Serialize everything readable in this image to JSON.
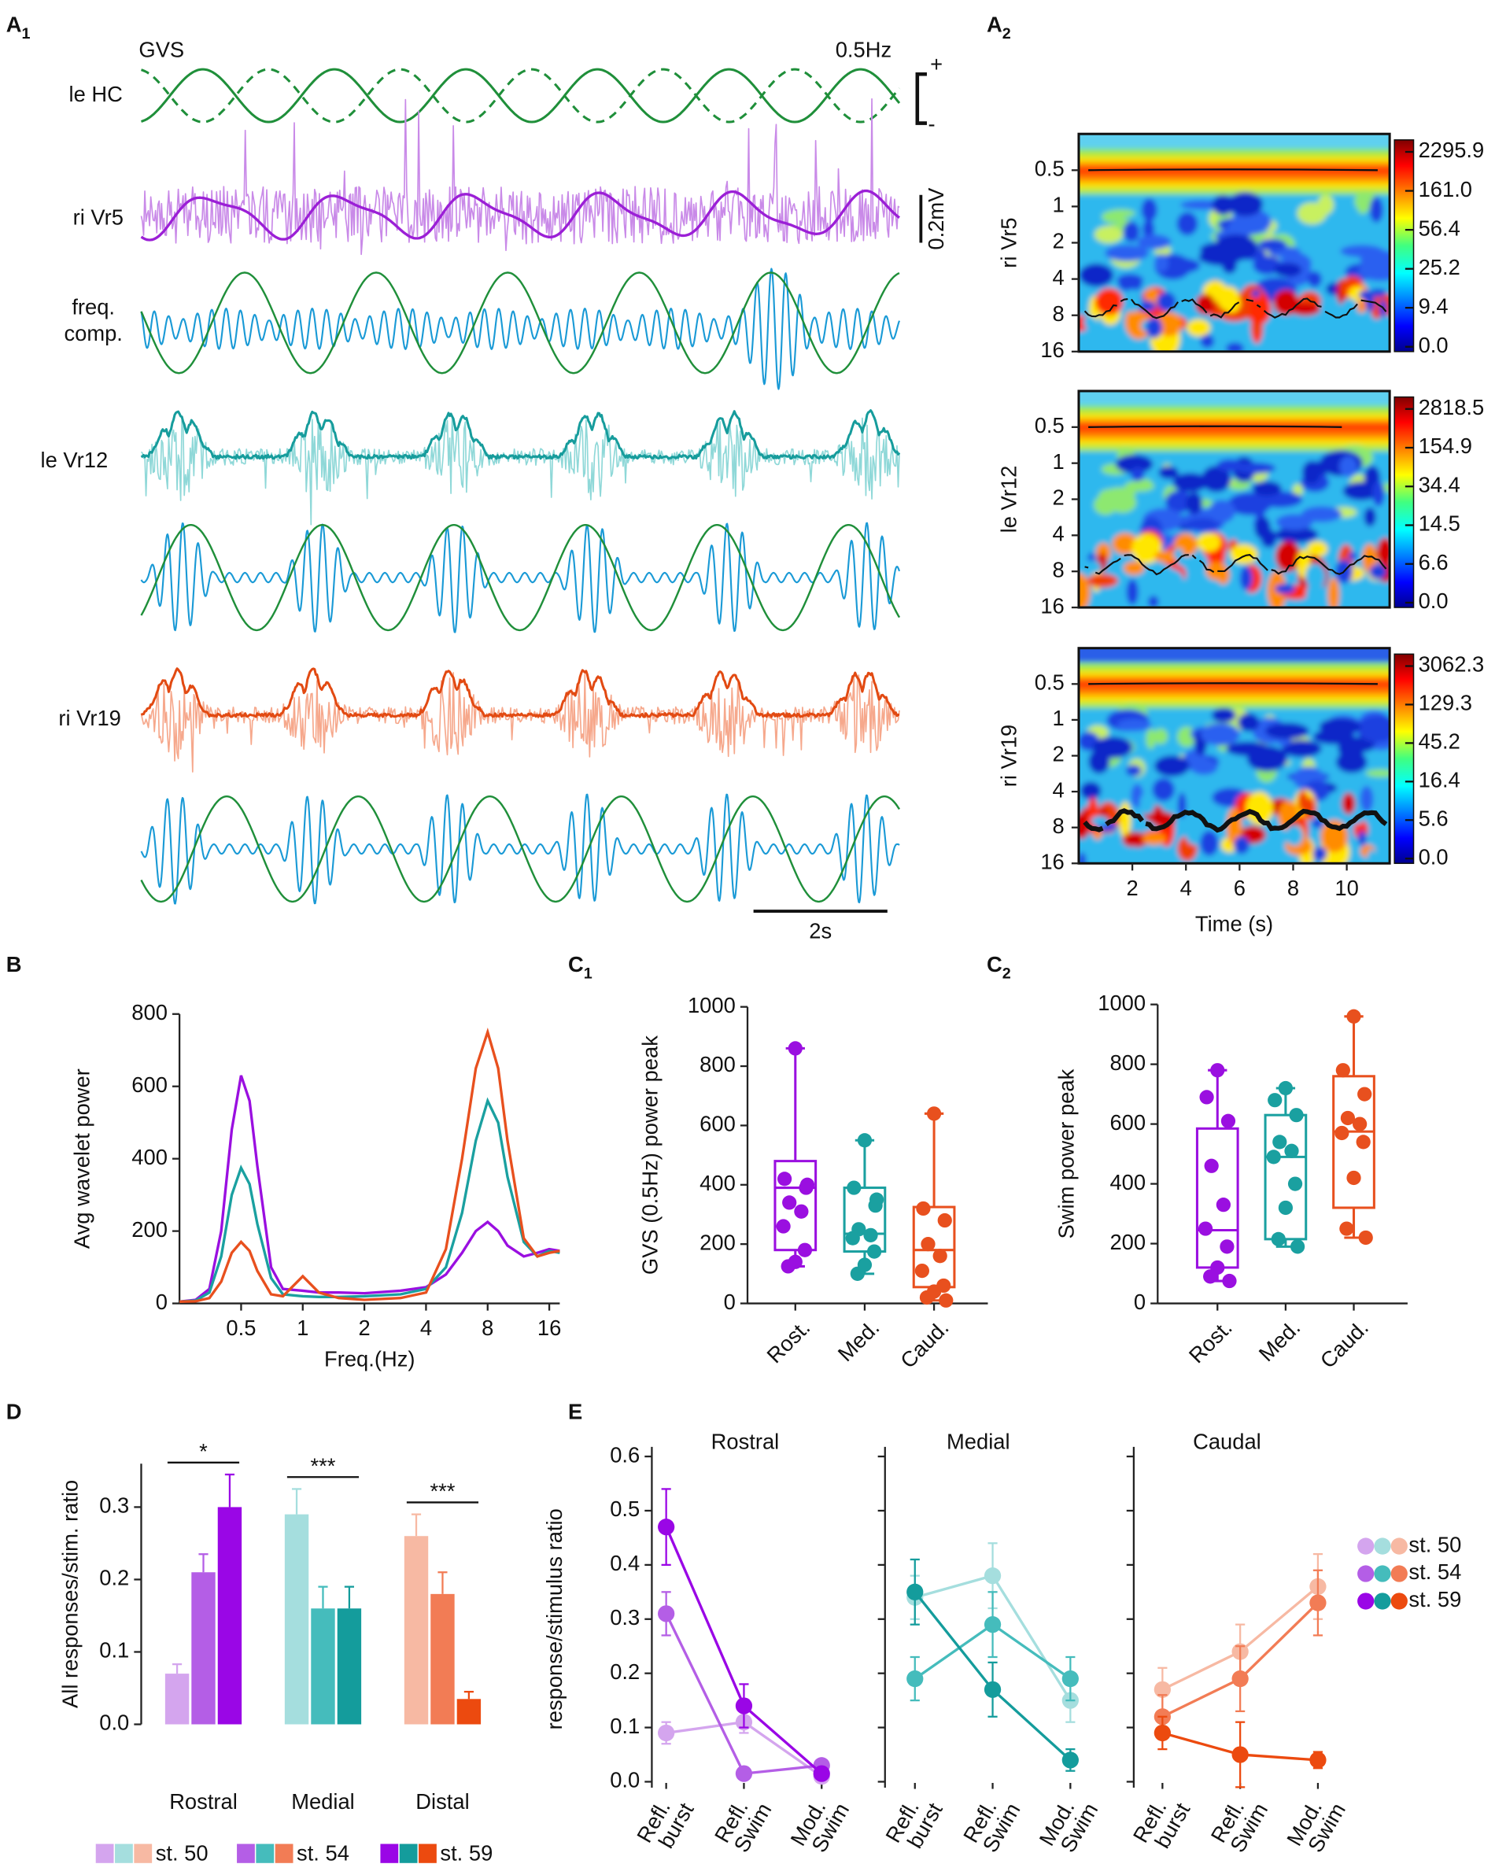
{
  "panel_labels": [
    {
      "letter": "A",
      "sub": "1"
    },
    {
      "letter": "A",
      "sub": "2"
    },
    {
      "letter": "B"
    },
    {
      "letter": "C",
      "sub": "1"
    },
    {
      "letter": "C",
      "sub": "2"
    },
    {
      "letter": "D"
    },
    {
      "letter": "E"
    }
  ],
  "traces": {
    "stimulus": "GVS",
    "frequency": "0.5Hz",
    "hc": "le HC",
    "polarity_plus": "+",
    "polarity_minus": "-",
    "vr5": "ri Vr5",
    "amplitude_scale": "0.2mV",
    "freq_comp": [
      "freq.",
      "comp."
    ],
    "vr12": "le Vr12",
    "vr19": "ri Vr19",
    "time_scale": "2s"
  },
  "chart_data": [
    {
      "type": "scalogram",
      "ylabel": "ri Vr5",
      "color": "#9b1fd6",
      "ylim": [
        0.25,
        16
      ],
      "log_y": true,
      "y_reversed": true,
      "yticks": [
        0.5,
        1,
        2,
        4,
        8,
        16
      ],
      "colorbar_ticks": [
        2295.9,
        {
          "value": 161,
          "label": "161.0"
        },
        56.4,
        25.2,
        9.4,
        {
          "value": 0,
          "label": "0.0"
        }
      ]
    },
    {
      "type": "scalogram",
      "ylabel": "le Vr12",
      "color": "#1aa5a5",
      "ylim": [
        0.25,
        16
      ],
      "log_y": true,
      "y_reversed": true,
      "yticks": [
        0.5,
        1,
        2,
        4,
        8,
        16
      ],
      "colorbar_ticks": [
        2818.5,
        154.9,
        34.4,
        14.5,
        6.6,
        {
          "value": 0,
          "label": "0.0"
        }
      ]
    },
    {
      "type": "scalogram",
      "ylabel": "ri Vr19",
      "color": "#e8501e",
      "ylim": [
        0.25,
        16
      ],
      "log_y": true,
      "y_reversed": true,
      "yticks": [
        0.5,
        1,
        2,
        4,
        8,
        16
      ],
      "colorbar_ticks": [
        3062.3,
        129.3,
        45.2,
        16.4,
        5.6,
        {
          "value": 0,
          "label": "0.0"
        }
      ],
      "xlim": [
        0,
        11.6
      ],
      "xticks": [
        2,
        4,
        6,
        8,
        10
      ],
      "xlabel": "Time (s)"
    },
    {
      "type": "line",
      "xlabel": "Freq.(Hz)",
      "ylabel": "Avg wavelet power",
      "log_x": true,
      "xlim": [
        0.25,
        18
      ],
      "xticks": [
        0.5,
        1,
        2,
        4,
        8,
        16
      ],
      "ylim": [
        0,
        800
      ],
      "yticks": [
        0,
        200,
        400,
        600,
        800
      ],
      "x": [
        0.25,
        0.3,
        0.35,
        0.4,
        0.45,
        0.5,
        0.55,
        0.6,
        0.7,
        0.8,
        1,
        1.2,
        1.5,
        2,
        3,
        4,
        5,
        6,
        7,
        8,
        9,
        10,
        12,
        14,
        16,
        18
      ],
      "series": [
        {
          "color": "#9a0fe0",
          "values": [
            5,
            10,
            40,
            200,
            480,
            630,
            560,
            380,
            100,
            40,
            35,
            30,
            30,
            28,
            35,
            45,
            80,
            140,
            200,
            225,
            200,
            160,
            130,
            140,
            150,
            145
          ]
        },
        {
          "color": "#1aa0a0",
          "values": [
            5,
            8,
            30,
            130,
            300,
            375,
            330,
            220,
            70,
            25,
            20,
            18,
            18,
            20,
            25,
            40,
            100,
            250,
            450,
            560,
            500,
            350,
            170,
            130,
            145,
            140
          ]
        },
        {
          "color": "#e8501e",
          "values": [
            5,
            6,
            15,
            60,
            140,
            170,
            145,
            90,
            25,
            20,
            75,
            30,
            15,
            10,
            15,
            30,
            150,
            400,
            650,
            750,
            650,
            450,
            180,
            130,
            140,
            145
          ]
        }
      ]
    },
    {
      "type": "box",
      "ylabel": "GVS (0.5Hz) power peak",
      "ylim": [
        0,
        1000
      ],
      "yticks": [
        0,
        200,
        400,
        600,
        800,
        1000
      ],
      "categories": [
        "Rost.",
        "Med.",
        "Caud."
      ],
      "colors": [
        "#9a0fe0",
        "#1aa0a0",
        "#e8501e"
      ],
      "boxes": [
        {
          "min": 125,
          "q1": 180,
          "median": 390,
          "q3": 480,
          "max": 860,
          "points": [
            860,
            420,
            390,
            340,
            310,
            260,
            180,
            140,
            125,
            400
          ]
        },
        {
          "min": 100,
          "q1": 175,
          "median": 235,
          "q3": 390,
          "max": 550,
          "points": [
            550,
            390,
            330,
            250,
            230,
            220,
            175,
            130,
            100,
            350
          ]
        },
        {
          "min": 10,
          "q1": 55,
          "median": 180,
          "q3": 325,
          "max": 640,
          "points": [
            640,
            320,
            280,
            200,
            160,
            110,
            60,
            40,
            20,
            10
          ]
        }
      ]
    },
    {
      "type": "box",
      "ylabel": "Swim power peak",
      "ylim": [
        0,
        1000
      ],
      "yticks": [
        0,
        200,
        400,
        600,
        800,
        1000
      ],
      "categories": [
        "Rost.",
        "Med.",
        "Caud."
      ],
      "colors": [
        "#9a0fe0",
        "#1aa0a0",
        "#e8501e"
      ],
      "boxes": [
        {
          "min": 75,
          "q1": 120,
          "median": 245,
          "q3": 585,
          "max": 780,
          "points": [
            780,
            690,
            610,
            460,
            330,
            250,
            190,
            120,
            90,
            75
          ]
        },
        {
          "min": 190,
          "q1": 215,
          "median": 490,
          "q3": 630,
          "max": 720,
          "points": [
            720,
            680,
            630,
            540,
            510,
            490,
            400,
            320,
            215,
            190
          ]
        },
        {
          "min": 220,
          "q1": 320,
          "median": 575,
          "q3": 760,
          "max": 960,
          "points": [
            960,
            780,
            700,
            620,
            600,
            570,
            540,
            420,
            250,
            220
          ]
        }
      ]
    },
    {
      "type": "bar",
      "ylabel": "All responses/stim. ratio",
      "ylim": [
        0,
        0.36
      ],
      "yticks": [
        {
          "value": 0,
          "label": "0.0"
        },
        0.1,
        0.2,
        0.3
      ],
      "categories": [
        "Rostral",
        "Medial",
        "Distal"
      ],
      "significance": [
        "*",
        "***",
        "***"
      ],
      "series": [
        {
          "name": "st. 50",
          "colors": [
            "#d4a5ee",
            "#a5dede",
            "#f7b9a3"
          ],
          "values": [
            0.07,
            0.29,
            0.26
          ],
          "errors": [
            0.013,
            0.035,
            0.03
          ]
        },
        {
          "name": "st. 54",
          "colors": [
            "#b45ee6",
            "#45bcbc",
            "#f27c55"
          ],
          "values": [
            0.21,
            0.16,
            0.18
          ],
          "errors": [
            0.025,
            0.03,
            0.03
          ]
        },
        {
          "name": "st. 59",
          "colors": [
            "#9a06e6",
            "#149c9c",
            "#ec4a0f"
          ],
          "values": [
            0.3,
            0.16,
            0.035
          ],
          "errors": [
            0.045,
            0.03,
            0.01
          ]
        }
      ]
    },
    {
      "type": "line",
      "title": "Rostral",
      "ylabel": "response/stimulus ratio",
      "ylim": [
        0,
        0.6
      ],
      "yticks": [
        {
          "value": 0,
          "label": "0.0"
        },
        0.1,
        0.2,
        0.3,
        0.4,
        0.5,
        0.6
      ],
      "categories": [
        [
          "Refl.",
          "burst"
        ],
        [
          "Refl.",
          "Swim"
        ],
        [
          "Mod.",
          "Swim"
        ]
      ],
      "series": [
        {
          "name": "st. 50",
          "color": "#d4a5ee",
          "values": [
            0.09,
            0.11,
            0.01
          ],
          "errors": [
            0.02,
            0.02,
            0.005
          ]
        },
        {
          "name": "st. 54",
          "color": "#b45ee6",
          "values": [
            0.31,
            0.015,
            0.03
          ],
          "errors": [
            0.04,
            0.005,
            0.005
          ]
        },
        {
          "name": "st. 59",
          "color": "#9a06e6",
          "values": [
            0.47,
            0.14,
            0.015
          ],
          "errors": [
            0.07,
            0.04,
            0.005
          ]
        }
      ]
    },
    {
      "type": "line",
      "title": "Medial",
      "show_tick_labels": false,
      "ylim": [
        0,
        0.6
      ],
      "yticks": [
        {
          "value": 0,
          "label": "0.0"
        },
        0.1,
        0.2,
        0.3,
        0.4,
        0.5,
        0.6
      ],
      "categories": [
        [
          "Refl.",
          "burst"
        ],
        [
          "Refl.",
          "Swim"
        ],
        [
          "Mod.",
          "Swim"
        ]
      ],
      "series": [
        {
          "name": "st. 50",
          "color": "#a5dede",
          "values": [
            0.34,
            0.38,
            0.15
          ],
          "errors": [
            0.04,
            0.06,
            0.04
          ]
        },
        {
          "name": "st. 54",
          "color": "#45bcbc",
          "values": [
            0.19,
            0.29,
            0.19
          ],
          "errors": [
            0.04,
            0.06,
            0.04
          ]
        },
        {
          "name": "st. 59",
          "color": "#149c9c",
          "values": [
            0.35,
            0.17,
            0.04
          ],
          "errors": [
            0.06,
            0.05,
            0.02
          ]
        }
      ]
    },
    {
      "type": "line",
      "title": "Caudal",
      "show_tick_labels": false,
      "legend": "right",
      "ylim": [
        0,
        0.6
      ],
      "yticks": [
        {
          "value": 0,
          "label": "0.0"
        },
        0.1,
        0.2,
        0.3,
        0.4,
        0.5,
        0.6
      ],
      "categories": [
        [
          "Refl.",
          "burst"
        ],
        [
          "Refl.",
          "Swim"
        ],
        [
          "Mod.",
          "Swim"
        ]
      ],
      "series": [
        {
          "name": "st. 50",
          "color": "#f7b9a3",
          "values": [
            0.17,
            0.24,
            0.36
          ],
          "errors": [
            0.04,
            0.05,
            0.06
          ]
        },
        {
          "name": "st. 54",
          "color": "#f27c55",
          "values": [
            0.12,
            0.19,
            0.33
          ],
          "errors": [
            0.04,
            0.06,
            0.06
          ]
        },
        {
          "name": "st. 59",
          "color": "#ec4a0f",
          "values": [
            0.09,
            0.05,
            0.04
          ],
          "errors": [
            0.03,
            0.06,
            0.015
          ]
        }
      ]
    }
  ]
}
